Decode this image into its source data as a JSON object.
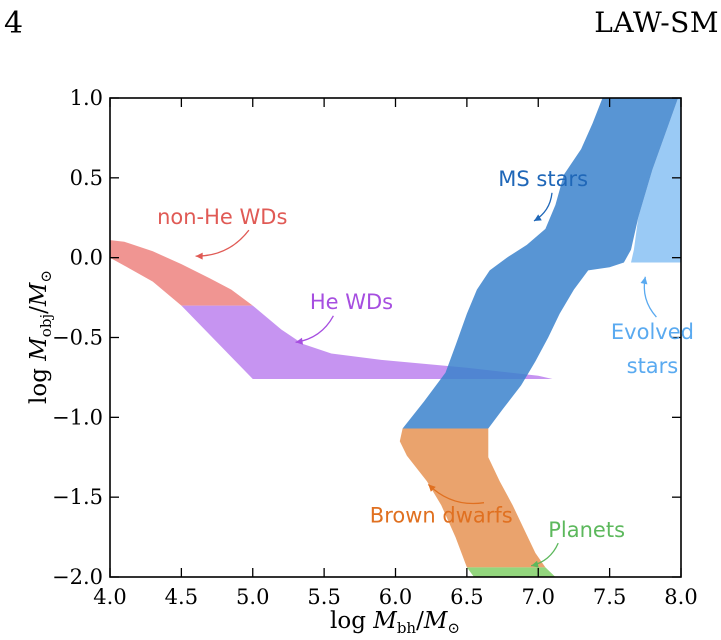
{
  "header": {
    "page_number": "4",
    "running_head": "LAW-SM"
  },
  "chart_data": {
    "type": "area",
    "x_axis": {
      "range": [
        4.0,
        8.0
      ],
      "ticks": [
        4.0,
        4.5,
        5.0,
        5.5,
        6.0,
        6.5,
        7.0,
        7.5,
        8.0
      ],
      "tick_labels": [
        "4.0",
        "4.5",
        "5.0",
        "5.5",
        "6.0",
        "6.5",
        "7.0",
        "7.5",
        "8.0"
      ],
      "label": "log M_bh/M_⊙"
    },
    "y_axis": {
      "range": [
        -2.0,
        1.0
      ],
      "ticks": [
        1.0,
        0.5,
        0.0,
        -0.5,
        -1.0,
        -1.5,
        -2.0
      ],
      "tick_labels": [
        "1.0",
        "0.5",
        "0.0",
        "−0.5",
        "−1.0",
        "−1.5",
        "−2.0"
      ],
      "label": "log M_obj/M_⊙"
    },
    "grid": false,
    "series": [
      {
        "name": "non-He WDs",
        "color": "#ef8f8c",
        "opacity": 0.95,
        "polygon": [
          [
            4.0,
            0.11
          ],
          [
            4.1,
            0.1
          ],
          [
            4.3,
            0.04
          ],
          [
            4.5,
            -0.04
          ],
          [
            4.7,
            -0.13
          ],
          [
            4.85,
            -0.2
          ],
          [
            5.0,
            -0.3
          ],
          [
            4.5,
            -0.3
          ],
          [
            4.3,
            -0.15
          ],
          [
            4.1,
            -0.05
          ],
          [
            4.0,
            0.0
          ]
        ]
      },
      {
        "name": "He WDs",
        "color": "#c38ef0",
        "opacity": 0.95,
        "polygon": [
          [
            4.5,
            -0.3
          ],
          [
            5.0,
            -0.3
          ],
          [
            5.2,
            -0.45
          ],
          [
            5.35,
            -0.54
          ],
          [
            5.55,
            -0.6
          ],
          [
            5.9,
            -0.64
          ],
          [
            6.5,
            -0.69
          ],
          [
            7.0,
            -0.74
          ],
          [
            7.1,
            -0.76
          ],
          [
            5.0,
            -0.76
          ]
        ]
      },
      {
        "name": "Brown dwarfs",
        "color": "#eaa36d",
        "opacity": 1,
        "polygon": [
          [
            6.05,
            -1.07
          ],
          [
            6.65,
            -1.07
          ],
          [
            6.65,
            -1.25
          ],
          [
            6.73,
            -1.4
          ],
          [
            6.82,
            -1.55
          ],
          [
            6.9,
            -1.7
          ],
          [
            6.98,
            -1.85
          ],
          [
            7.05,
            -1.94
          ],
          [
            6.5,
            -1.94
          ],
          [
            6.42,
            -1.75
          ],
          [
            6.32,
            -1.55
          ],
          [
            6.22,
            -1.4
          ],
          [
            6.08,
            -1.24
          ],
          [
            6.03,
            -1.15
          ]
        ]
      },
      {
        "name": "Planets",
        "color": "#93d67d",
        "opacity": 1,
        "polygon": [
          [
            6.5,
            -1.94
          ],
          [
            7.05,
            -1.94
          ],
          [
            7.12,
            -2.0
          ],
          [
            6.55,
            -2.0
          ]
        ]
      },
      {
        "name": "Evolved stars",
        "color": "#9acaf5",
        "opacity": 1,
        "polygon": [
          [
            7.65,
            -0.03
          ],
          [
            8.0,
            -0.03
          ],
          [
            8.0,
            1.0
          ],
          [
            7.98,
            1.0
          ],
          [
            7.9,
            0.8
          ],
          [
            7.8,
            0.55
          ],
          [
            7.7,
            0.25
          ],
          [
            7.67,
            0.05
          ]
        ]
      },
      {
        "name": "MS stars",
        "color": "#3b82cc",
        "opacity": 0.85,
        "polygon": [
          [
            6.05,
            -1.07
          ],
          [
            6.2,
            -0.9
          ],
          [
            6.35,
            -0.72
          ],
          [
            6.42,
            -0.55
          ],
          [
            6.5,
            -0.35
          ],
          [
            6.57,
            -0.2
          ],
          [
            6.66,
            -0.08
          ],
          [
            6.78,
            0.0
          ],
          [
            6.92,
            0.08
          ],
          [
            7.05,
            0.18
          ],
          [
            7.12,
            0.33
          ],
          [
            7.18,
            0.52
          ],
          [
            7.3,
            0.68
          ],
          [
            7.38,
            0.84
          ],
          [
            7.45,
            1.0
          ],
          [
            7.98,
            1.0
          ],
          [
            7.9,
            0.8
          ],
          [
            7.8,
            0.55
          ],
          [
            7.7,
            0.25
          ],
          [
            7.65,
            0.05
          ],
          [
            7.6,
            -0.03
          ],
          [
            7.5,
            -0.06
          ],
          [
            7.35,
            -0.08
          ],
          [
            7.25,
            -0.2
          ],
          [
            7.15,
            -0.35
          ],
          [
            7.07,
            -0.5
          ],
          [
            6.98,
            -0.65
          ],
          [
            6.88,
            -0.8
          ],
          [
            6.75,
            -0.95
          ],
          [
            6.65,
            -1.07
          ]
        ]
      }
    ],
    "annotations": [
      {
        "text": "non-He WDs",
        "color": "#e05a55",
        "x": 4.33,
        "y": 0.21,
        "arrow_to": [
          4.6,
          0.01
        ]
      },
      {
        "text": "He WDs",
        "color": "#a64ee0",
        "x": 5.4,
        "y": -0.32,
        "arrow_to": [
          5.3,
          -0.53
        ]
      },
      {
        "text": "MS stars",
        "color": "#1f67b8",
        "x": 6.72,
        "y": 0.45,
        "arrow_to": [
          6.97,
          0.23
        ]
      },
      {
        "text": "Evolved stars",
        "color": "#5aaaf0",
        "x": 7.8,
        "y": -0.51,
        "arrow_to": [
          7.75,
          -0.12
        ]
      },
      {
        "text": "Brown dwarfs",
        "color": "#e07020",
        "x": 5.82,
        "y": -1.66,
        "arrow_to": [
          6.23,
          -1.42
        ]
      },
      {
        "text": "Planets",
        "color": "#5cb85c",
        "x": 7.07,
        "y": -1.75,
        "arrow_to": [
          6.95,
          -1.93
        ]
      }
    ]
  }
}
